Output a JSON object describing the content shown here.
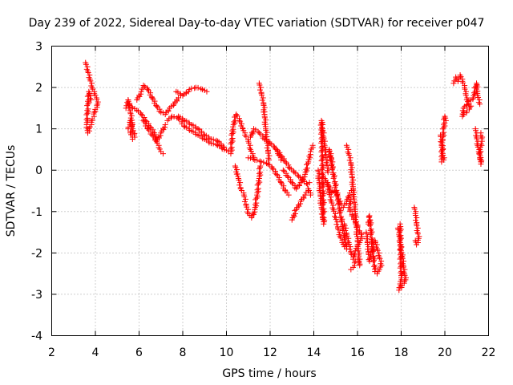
{
  "chart_data": {
    "type": "scatter",
    "title": "Day 239 of 2022, Sidereal Day-to-day VTEC variation (SDTVAR) for receiver p047",
    "xlabel": "GPS time / hours",
    "ylabel": "SDTVAR / TECUs",
    "xlim": [
      2,
      22
    ],
    "ylim": [
      -4,
      3
    ],
    "xticks": [
      2,
      4,
      6,
      8,
      10,
      12,
      14,
      16,
      18,
      20,
      22
    ],
    "yticks": [
      -4,
      -3,
      -2,
      -1,
      0,
      1,
      2,
      3
    ],
    "grid": true,
    "marker": "+",
    "color": "#ff0000",
    "series": [
      {
        "name": "SDTVAR",
        "segments": [
          [
            [
              3.55,
              2.6
            ],
            [
              3.65,
              2.4
            ],
            [
              3.75,
              2.2
            ],
            [
              3.85,
              2.0
            ],
            [
              3.95,
              1.85
            ],
            [
              4.05,
              1.75
            ],
            [
              4.1,
              1.6
            ],
            [
              3.95,
              1.4
            ],
            [
              3.85,
              1.2
            ],
            [
              3.75,
              1.05
            ],
            [
              3.65,
              0.9
            ],
            [
              3.6,
              1.1
            ],
            [
              3.7,
              1.9
            ],
            [
              3.8,
              1.7
            ]
          ],
          [
            [
              5.4,
              1.5
            ],
            [
              5.5,
              1.7
            ],
            [
              5.6,
              1.4
            ],
            [
              5.7,
              1.1
            ],
            [
              5.6,
              0.9
            ],
            [
              5.7,
              0.75
            ],
            [
              5.8,
              0.8
            ],
            [
              5.6,
              1.2
            ],
            [
              5.5,
              1.0
            ]
          ],
          [
            [
              5.5,
              1.6
            ],
            [
              5.7,
              1.5
            ],
            [
              5.9,
              1.45
            ],
            [
              6.1,
              1.35
            ],
            [
              6.3,
              1.2
            ],
            [
              6.5,
              1.05
            ],
            [
              6.7,
              0.9
            ],
            [
              6.8,
              0.7
            ],
            [
              6.9,
              0.55
            ],
            [
              7.0,
              0.45
            ],
            [
              7.1,
              0.4
            ]
          ],
          [
            [
              5.9,
              1.7
            ],
            [
              6.1,
              1.9
            ],
            [
              6.2,
              2.05
            ],
            [
              6.4,
              1.95
            ],
            [
              6.6,
              1.75
            ],
            [
              6.8,
              1.55
            ],
            [
              7.0,
              1.4
            ],
            [
              7.2,
              1.35
            ],
            [
              7.4,
              1.5
            ],
            [
              7.6,
              1.6
            ],
            [
              7.8,
              1.75
            ]
          ],
          [
            [
              7.7,
              1.9
            ],
            [
              8.0,
              1.8
            ],
            [
              8.3,
              1.95
            ],
            [
              8.6,
              2.0
            ],
            [
              8.9,
              1.95
            ],
            [
              9.1,
              1.9
            ]
          ],
          [
            [
              6.2,
              1.2
            ],
            [
              6.4,
              1.0
            ],
            [
              6.6,
              0.85
            ],
            [
              6.8,
              0.7
            ],
            [
              7.0,
              0.9
            ],
            [
              7.2,
              1.1
            ]
          ],
          [
            [
              7.3,
              1.2
            ],
            [
              7.5,
              1.3
            ],
            [
              7.8,
              1.25
            ],
            [
              8.1,
              1.05
            ],
            [
              8.4,
              0.95
            ],
            [
              8.7,
              0.85
            ],
            [
              9.0,
              0.75
            ],
            [
              9.3,
              0.65
            ],
            [
              9.6,
              0.6
            ],
            [
              9.9,
              0.5
            ],
            [
              10.1,
              0.45
            ]
          ],
          [
            [
              7.8,
              1.3
            ],
            [
              8.1,
              1.2
            ],
            [
              8.4,
              1.1
            ],
            [
              8.7,
              1.0
            ],
            [
              9.0,
              0.85
            ],
            [
              9.3,
              0.75
            ],
            [
              9.6,
              0.7
            ],
            [
              9.9,
              0.55
            ]
          ],
          [
            [
              10.2,
              0.4
            ],
            [
              10.3,
              1.05
            ],
            [
              10.45,
              1.35
            ],
            [
              10.6,
              1.2
            ],
            [
              10.75,
              1.0
            ],
            [
              10.85,
              0.85
            ],
            [
              11.0,
              0.7
            ],
            [
              11.1,
              0.5
            ],
            [
              11.2,
              0.35
            ],
            [
              11.3,
              0.25
            ]
          ],
          [
            [
              10.4,
              0.1
            ],
            [
              10.55,
              -0.2
            ],
            [
              10.65,
              -0.45
            ],
            [
              10.8,
              -0.6
            ],
            [
              10.9,
              -0.85
            ],
            [
              11.0,
              -1.05
            ],
            [
              11.15,
              -1.15
            ],
            [
              11.3,
              -0.95
            ],
            [
              11.4,
              -0.6
            ],
            [
              11.5,
              -0.2
            ],
            [
              11.55,
              0.1
            ]
          ],
          [
            [
              11.5,
              2.1
            ],
            [
              11.6,
              1.85
            ],
            [
              11.7,
              1.6
            ],
            [
              11.75,
              1.3
            ],
            [
              11.8,
              1.0
            ],
            [
              11.85,
              0.7
            ],
            [
              11.9,
              0.45
            ],
            [
              11.95,
              0.25
            ]
          ],
          [
            [
              11.1,
              0.8
            ],
            [
              11.25,
              1.0
            ],
            [
              11.5,
              0.9
            ],
            [
              11.75,
              0.75
            ],
            [
              12.0,
              0.65
            ],
            [
              12.2,
              0.55
            ],
            [
              12.35,
              0.4
            ],
            [
              12.5,
              0.25
            ]
          ],
          [
            [
              11.0,
              0.3
            ],
            [
              11.3,
              0.25
            ],
            [
              11.6,
              0.2
            ],
            [
              11.9,
              0.15
            ],
            [
              12.1,
              0.05
            ],
            [
              12.3,
              -0.1
            ],
            [
              12.5,
              -0.3
            ],
            [
              12.7,
              -0.5
            ],
            [
              12.85,
              -0.6
            ]
          ],
          [
            [
              12.3,
              0.5
            ],
            [
              12.5,
              0.35
            ],
            [
              12.7,
              0.2
            ],
            [
              12.9,
              0.05
            ],
            [
              13.1,
              -0.05
            ],
            [
              13.3,
              -0.15
            ],
            [
              13.5,
              -0.25
            ],
            [
              13.7,
              -0.35
            ],
            [
              13.8,
              -0.3
            ]
          ],
          [
            [
              12.6,
              0.0
            ],
            [
              12.8,
              -0.15
            ],
            [
              13.0,
              -0.3
            ],
            [
              13.2,
              -0.45
            ],
            [
              13.4,
              -0.3
            ],
            [
              13.6,
              -0.1
            ],
            [
              13.75,
              0.2
            ],
            [
              13.85,
              0.45
            ],
            [
              13.95,
              0.6
            ]
          ],
          [
            [
              13.0,
              -1.2
            ],
            [
              13.2,
              -0.95
            ],
            [
              13.4,
              -0.75
            ],
            [
              13.6,
              -0.6
            ],
            [
              13.75,
              -0.45
            ],
            [
              13.85,
              -0.6
            ]
          ],
          [
            [
              14.2,
              0.0
            ],
            [
              14.25,
              -0.3
            ],
            [
              14.3,
              -0.6
            ],
            [
              14.35,
              -0.9
            ],
            [
              14.4,
              -1.15
            ],
            [
              14.45,
              -1.3
            ],
            [
              14.35,
              1.2
            ],
            [
              14.4,
              1.0
            ],
            [
              14.45,
              0.8
            ],
            [
              14.5,
              0.6
            ],
            [
              14.55,
              0.35
            ],
            [
              14.6,
              0.15
            ],
            [
              14.65,
              -0.05
            ]
          ],
          [
            [
              14.6,
              -0.3
            ],
            [
              14.7,
              -0.55
            ],
            [
              14.8,
              -0.75
            ],
            [
              14.9,
              -0.95
            ],
            [
              15.0,
              -1.15
            ],
            [
              15.1,
              -1.4
            ],
            [
              15.2,
              -1.6
            ],
            [
              15.3,
              -1.75
            ],
            [
              15.4,
              -1.85
            ],
            [
              15.5,
              -1.9
            ],
            [
              14.7,
              0.5
            ],
            [
              14.8,
              0.3
            ],
            [
              14.85,
              0.05
            ]
          ],
          [
            [
              14.5,
              -0.2
            ],
            [
              14.65,
              -0.35
            ],
            [
              14.8,
              -0.55
            ],
            [
              14.95,
              -0.5
            ],
            [
              15.1,
              -0.65
            ],
            [
              15.2,
              -0.8
            ],
            [
              15.35,
              -0.9
            ],
            [
              15.5,
              -0.75
            ],
            [
              15.65,
              -0.55
            ],
            [
              15.8,
              -0.45
            ]
          ],
          [
            [
              15.5,
              0.6
            ],
            [
              15.6,
              0.4
            ],
            [
              15.7,
              0.15
            ],
            [
              15.75,
              -0.15
            ],
            [
              15.8,
              -0.45
            ],
            [
              15.85,
              -0.75
            ],
            [
              15.9,
              -1.05
            ],
            [
              15.95,
              -1.35
            ],
            [
              16.0,
              -1.7
            ],
            [
              16.05,
              -2.05
            ],
            [
              16.1,
              -2.3
            ],
            [
              16.0,
              -2.15
            ],
            [
              15.9,
              -2.2
            ],
            [
              15.8,
              -2.35
            ],
            [
              15.7,
              -2.4
            ]
          ],
          [
            [
              15.4,
              -1.3
            ],
            [
              15.5,
              -1.55
            ],
            [
              15.6,
              -1.75
            ],
            [
              15.7,
              -2.0
            ],
            [
              15.8,
              -2.15
            ],
            [
              15.9,
              -1.95
            ],
            [
              16.0,
              -1.8
            ],
            [
              16.1,
              -1.75
            ],
            [
              16.2,
              -1.6
            ],
            [
              15.6,
              -0.9
            ],
            [
              15.7,
              -0.7
            ]
          ],
          [
            [
              16.4,
              -1.5
            ],
            [
              16.45,
              -1.75
            ],
            [
              16.5,
              -2.0
            ],
            [
              16.55,
              -2.2
            ],
            [
              16.6,
              -2.05
            ],
            [
              16.7,
              -1.85
            ],
            [
              16.8,
              -1.7
            ],
            [
              16.9,
              -1.9
            ],
            [
              17.0,
              -2.1
            ],
            [
              17.1,
              -2.3
            ],
            [
              17.0,
              -2.4
            ],
            [
              16.9,
              -2.5
            ],
            [
              16.8,
              -2.45
            ],
            [
              16.55,
              -1.1
            ],
            [
              16.5,
              -1.3
            ]
          ],
          [
            [
              17.85,
              -1.4
            ],
            [
              17.9,
              -1.55
            ],
            [
              17.95,
              -1.75
            ],
            [
              18.0,
              -1.95
            ],
            [
              18.05,
              -2.1
            ],
            [
              18.1,
              -2.3
            ],
            [
              18.15,
              -2.5
            ],
            [
              18.2,
              -2.65
            ],
            [
              17.9,
              -2.9
            ],
            [
              17.95,
              -2.75
            ],
            [
              18.0,
              -2.6
            ],
            [
              17.95,
              -1.3
            ]
          ],
          [
            [
              18.6,
              -0.9
            ],
            [
              18.65,
              -1.05
            ],
            [
              18.7,
              -1.3
            ],
            [
              18.75,
              -1.5
            ],
            [
              18.8,
              -1.65
            ],
            [
              18.7,
              -1.8
            ],
            [
              18.65,
              -1.7
            ]
          ],
          [
            [
              19.8,
              0.85
            ],
            [
              19.85,
              0.6
            ],
            [
              19.9,
              0.4
            ],
            [
              19.95,
              0.25
            ],
            [
              19.85,
              0.2
            ],
            [
              19.9,
              0.75
            ],
            [
              20.0,
              1.3
            ],
            [
              20.05,
              1.2
            ]
          ],
          [
            [
              20.4,
              2.1
            ],
            [
              20.5,
              2.25
            ],
            [
              20.6,
              2.15
            ],
            [
              20.7,
              2.3
            ],
            [
              20.8,
              2.15
            ],
            [
              20.9,
              2.0
            ],
            [
              20.95,
              1.85
            ],
            [
              21.0,
              1.7
            ],
            [
              21.1,
              1.6
            ],
            [
              21.2,
              1.55
            ],
            [
              20.8,
              1.3
            ],
            [
              20.85,
              1.5
            ],
            [
              21.3,
              1.75
            ],
            [
              21.45,
              2.1
            ],
            [
              21.5,
              1.8
            ],
            [
              21.6,
              1.6
            ]
          ],
          [
            [
              21.4,
              1.0
            ],
            [
              21.45,
              0.8
            ],
            [
              21.5,
              0.6
            ],
            [
              21.55,
              0.45
            ],
            [
              21.6,
              0.3
            ],
            [
              21.65,
              0.15
            ],
            [
              21.6,
              0.5
            ],
            [
              21.7,
              0.7
            ],
            [
              21.65,
              0.9
            ]
          ]
        ]
      }
    ]
  }
}
